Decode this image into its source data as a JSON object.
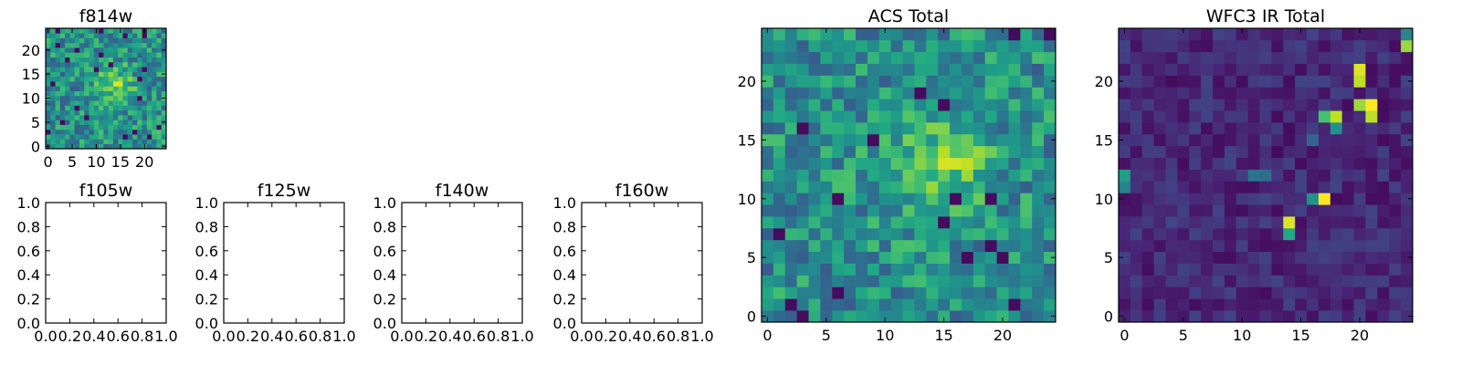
{
  "chart_data": [
    {
      "type": "heatmap",
      "title": "f814w",
      "xlabel": "",
      "ylabel": "",
      "xlim": [
        -0.5,
        24.5
      ],
      "ylim": [
        -0.5,
        24.5
      ],
      "xticks": [
        "0",
        "5",
        "10",
        "15",
        "20"
      ],
      "yticks": [
        "0",
        "5",
        "10",
        "15",
        "20"
      ],
      "colormap": "viridis",
      "bright_region": "broad diffuse bright blob centered near x=14, y=13"
    },
    {
      "type": "empty",
      "title": "f105w",
      "xlim": [
        0.0,
        1.0
      ],
      "ylim": [
        0.0,
        1.0
      ],
      "xticks": [
        "0.0",
        "0.2",
        "0.4",
        "0.6",
        "0.8",
        "1.0"
      ],
      "yticks": [
        "0.0",
        "0.2",
        "0.4",
        "0.6",
        "0.8",
        "1.0"
      ]
    },
    {
      "type": "empty",
      "title": "f125w",
      "xlim": [
        0.0,
        1.0
      ],
      "ylim": [
        0.0,
        1.0
      ],
      "xticks": [
        "0.0",
        "0.2",
        "0.4",
        "0.6",
        "0.8",
        "1.0"
      ],
      "yticks": [
        "0.0",
        "0.2",
        "0.4",
        "0.6",
        "0.8",
        "1.0"
      ]
    },
    {
      "type": "empty",
      "title": "f140w",
      "xlim": [
        0.0,
        1.0
      ],
      "ylim": [
        0.0,
        1.0
      ],
      "xticks": [
        "0.0",
        "0.2",
        "0.4",
        "0.6",
        "0.8",
        "1.0"
      ],
      "yticks": [
        "0.0",
        "0.2",
        "0.4",
        "0.6",
        "0.8",
        "1.0"
      ]
    },
    {
      "type": "empty",
      "title": "f160w",
      "xlim": [
        0.0,
        1.0
      ],
      "ylim": [
        0.0,
        1.0
      ],
      "xticks": [
        "0.0",
        "0.2",
        "0.4",
        "0.6",
        "0.8",
        "1.0"
      ],
      "yticks": [
        "0.0",
        "0.2",
        "0.4",
        "0.6",
        "0.8",
        "1.0"
      ]
    },
    {
      "type": "heatmap",
      "title": "ACS Total",
      "xlabel": "",
      "ylabel": "",
      "xlim": [
        -0.5,
        24.5
      ],
      "ylim": [
        -0.5,
        24.5
      ],
      "xticks": [
        "0",
        "5",
        "10",
        "15",
        "20"
      ],
      "yticks": [
        "0",
        "5",
        "10",
        "15",
        "20"
      ],
      "colormap": "viridis",
      "bright_region": "broad diffuse bright blob centered near x=15, y=13"
    },
    {
      "type": "heatmap",
      "title": "WFC3 IR Total",
      "xlabel": "",
      "ylabel": "",
      "xlim": [
        -0.5,
        24.5
      ],
      "ylim": [
        -0.5,
        24.5
      ],
      "xticks": [
        "0",
        "5",
        "10",
        "15",
        "20"
      ],
      "yticks": [
        "0",
        "5",
        "10",
        "15",
        "20"
      ],
      "colormap": "viridis",
      "bright_pixels": [
        {
          "x": 20,
          "y": 21,
          "level": 0.95
        },
        {
          "x": 20,
          "y": 20,
          "level": 0.9
        },
        {
          "x": 21,
          "y": 18,
          "level": 1.0
        },
        {
          "x": 20,
          "y": 18,
          "level": 0.85
        },
        {
          "x": 18,
          "y": 17,
          "level": 0.9
        },
        {
          "x": 21,
          "y": 17,
          "level": 0.9
        },
        {
          "x": 17,
          "y": 17,
          "level": 0.7
        },
        {
          "x": 18,
          "y": 16,
          "level": 0.5
        },
        {
          "x": 24,
          "y": 23,
          "level": 0.85
        },
        {
          "x": 24,
          "y": 24,
          "level": 0.45
        },
        {
          "x": 0,
          "y": 12,
          "level": 0.55
        },
        {
          "x": 0,
          "y": 11,
          "level": 0.45
        },
        {
          "x": 17,
          "y": 10,
          "level": 1.0
        },
        {
          "x": 16,
          "y": 10,
          "level": 0.5
        },
        {
          "x": 14,
          "y": 8,
          "level": 0.95
        },
        {
          "x": 14,
          "y": 7,
          "level": 0.6
        },
        {
          "x": 11,
          "y": 12,
          "level": 0.38
        },
        {
          "x": 12,
          "y": 12,
          "level": 0.35
        },
        {
          "x": 16,
          "y": 15,
          "level": 0.32
        }
      ]
    }
  ]
}
